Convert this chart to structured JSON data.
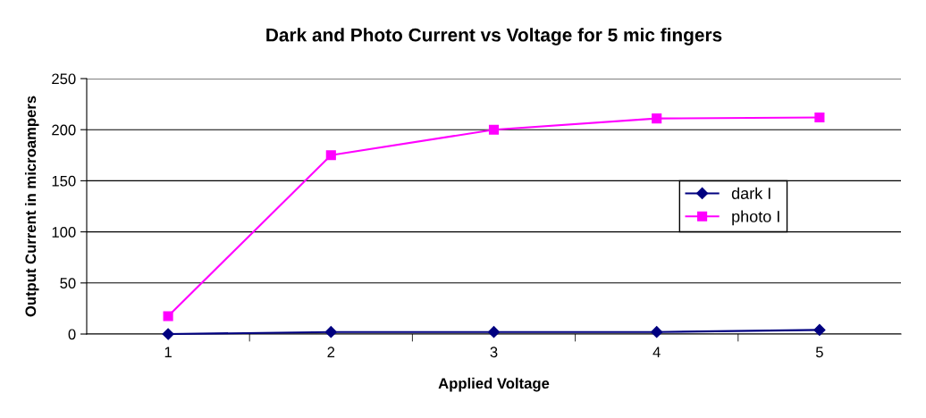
{
  "chart_data": {
    "type": "line",
    "title": "Dark and Photo Current vs Voltage for 5 mic fingers",
    "xlabel": "Applied Voltage",
    "ylabel": "Output Current in microampers",
    "categories": [
      "1",
      "2",
      "3",
      "4",
      "5"
    ],
    "series": [
      {
        "name": "dark I",
        "color": "#000080",
        "marker": "diamond",
        "values": [
          0,
          2,
          2,
          2,
          4
        ]
      },
      {
        "name": "photo I",
        "color": "#ff00ff",
        "marker": "square",
        "values": [
          17.5,
          175,
          200,
          211,
          212
        ]
      }
    ],
    "ylim": [
      0,
      250
    ],
    "yticks": [
      0,
      50,
      100,
      150,
      200,
      250
    ],
    "grid": "y",
    "legend": "right",
    "line_style": "solid"
  }
}
